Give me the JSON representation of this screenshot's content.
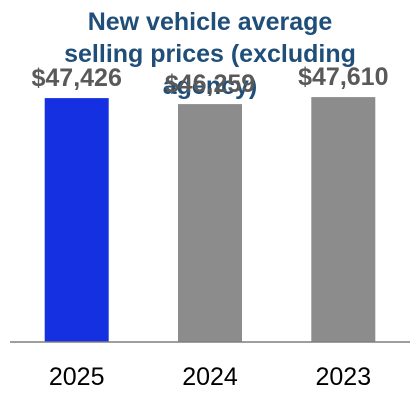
{
  "chart_data": {
    "type": "bar",
    "title": "New vehicle average\nselling prices (excluding\nagency)",
    "categories": [
      "2025",
      "2024",
      "2023"
    ],
    "values": [
      47426,
      46259,
      47610
    ],
    "value_labels": [
      "$47,426",
      "$46,259",
      "$47,610"
    ],
    "bar_colors": [
      "#1530e0",
      "#8c8c8c",
      "#8c8c8c"
    ],
    "xlabel": "",
    "ylabel": "",
    "ylim": [
      0,
      49000
    ],
    "grid": false,
    "legend": "none"
  },
  "colors": {
    "title": "#1f4e79",
    "value_label": "#595959",
    "axis": "#7f7f7f",
    "highlight_bar": "#1530e0",
    "other_bar": "#8c8c8c"
  }
}
